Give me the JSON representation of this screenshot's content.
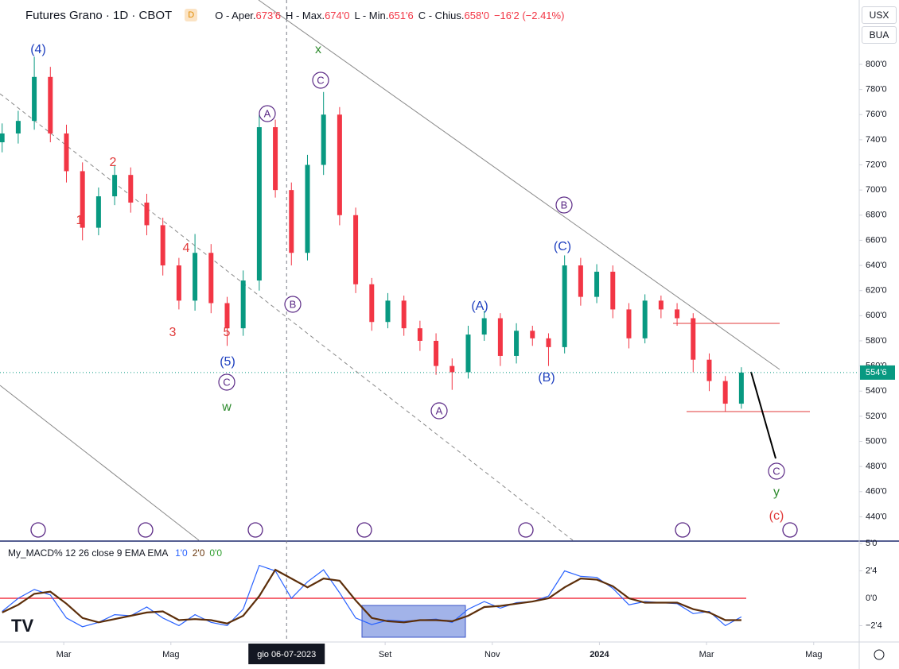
{
  "header": {
    "title": "Futures Grano · 1D · CBOT",
    "badge": "D",
    "ohlc": [
      {
        "name": "O - Aper.",
        "value": "673'6"
      },
      {
        "name": "H - Max.",
        "value": "674'0"
      },
      {
        "name": "L - Min.",
        "value": "651'6"
      },
      {
        "name": "C - Chius.",
        "value": "658'0"
      }
    ],
    "change": "−16'2 (−2.41%)",
    "currency": "USX",
    "unit": "BUA"
  },
  "chart_data": [
    {
      "type": "candlestick",
      "up_color": "#089981",
      "down_color": "#f23645",
      "x": [
        0.85,
        1.15,
        1.45,
        1.75,
        2.05,
        2.35,
        2.65,
        2.95,
        3.25,
        3.55,
        3.85,
        4.15,
        4.45,
        4.75,
        5.05,
        5.35,
        5.65,
        5.95,
        6.25,
        6.55,
        6.85,
        7.15,
        7.45,
        7.75,
        8.05,
        8.35,
        8.65,
        8.95,
        9.25,
        9.55,
        9.85,
        10.15,
        10.45,
        10.75,
        11.05,
        11.35,
        11.65,
        11.95,
        12.25,
        12.55,
        12.85,
        13.15,
        13.45,
        13.75,
        14.05,
        14.35,
        14.65
      ],
      "open": [
        738,
        745,
        755,
        790,
        745,
        715,
        670,
        695,
        712,
        690,
        672,
        640,
        612,
        650,
        610,
        590,
        628,
        750,
        700,
        650,
        720,
        760,
        680,
        625,
        595,
        612,
        590,
        580,
        560,
        555,
        585,
        598,
        568,
        588,
        582,
        575,
        640,
        615,
        635,
        605,
        582,
        612,
        605,
        598,
        565,
        548,
        530
      ],
      "high": [
        753,
        763,
        806,
        798,
        752,
        722,
        702,
        720,
        718,
        697,
        678,
        646,
        665,
        657,
        615,
        636,
        760,
        756,
        706,
        728,
        778,
        766,
        686,
        630,
        618,
        616,
        596,
        586,
        566,
        592,
        604,
        602,
        594,
        592,
        586,
        648,
        646,
        641,
        640,
        610,
        617,
        616,
        610,
        602,
        570,
        552,
        559
      ],
      "low": [
        730,
        737,
        748,
        738,
        706,
        660,
        664,
        688,
        682,
        664,
        632,
        605,
        604,
        602,
        576,
        584,
        620,
        694,
        640,
        644,
        712,
        672,
        618,
        588,
        590,
        584,
        572,
        553,
        541,
        550,
        580,
        560,
        562,
        576,
        560,
        570,
        608,
        610,
        598,
        574,
        578,
        598,
        592,
        555,
        540,
        524,
        526
      ],
      "close": [
        745,
        755,
        790,
        745,
        715,
        670,
        695,
        712,
        690,
        672,
        640,
        612,
        650,
        610,
        590,
        628,
        750,
        700,
        650,
        720,
        760,
        680,
        625,
        595,
        612,
        590,
        580,
        560,
        555,
        585,
        598,
        568,
        588,
        582,
        575,
        640,
        615,
        635,
        605,
        582,
        612,
        605,
        598,
        565,
        548,
        530,
        554.75
      ],
      "xlim": [
        0.81,
        16.85
      ],
      "xticks": [
        {
          "value": 2,
          "label": "Mar"
        },
        {
          "value": 4,
          "label": "Mag"
        },
        {
          "value": 8,
          "label": "Set"
        },
        {
          "value": 10,
          "label": "Nov"
        },
        {
          "value": 12,
          "label": "2024"
        },
        {
          "value": 14,
          "label": "Mar"
        },
        {
          "value": 16,
          "label": "Mag"
        }
      ],
      "crosshair": {
        "value": 6.16,
        "label": "gio 06-07-2023"
      },
      "ylim": [
        421.3,
        851.2
      ],
      "yticks": [
        {
          "value": 440,
          "label": "440'0"
        },
        {
          "value": 460,
          "label": "460'0"
        },
        {
          "value": 480,
          "label": "480'0"
        },
        {
          "value": 500,
          "label": "500'0"
        },
        {
          "value": 520,
          "label": "520'0"
        },
        {
          "value": 540,
          "label": "540'0"
        },
        {
          "value": 560,
          "label": "560'0"
        },
        {
          "value": 580,
          "label": "580'0"
        },
        {
          "value": 600,
          "label": "600'0"
        },
        {
          "value": 620,
          "label": "620'0"
        },
        {
          "value": 640,
          "label": "640'0"
        },
        {
          "value": 660,
          "label": "660'0"
        },
        {
          "value": 680,
          "label": "680'0"
        },
        {
          "value": 700,
          "label": "700'0"
        },
        {
          "value": 720,
          "label": "720'0"
        },
        {
          "value": 740,
          "label": "740'0"
        },
        {
          "value": 760,
          "label": "760'0"
        },
        {
          "value": 780,
          "label": "780'0"
        },
        {
          "value": 800,
          "label": "800'0"
        }
      ],
      "grid": false,
      "last_price": {
        "value": 554.75,
        "label": "554'6"
      },
      "annotations": [
        {
          "text": "(4)",
          "color": "#1e3fbf",
          "circled": false
        },
        {
          "text": "x",
          "color": "#2e8b2e",
          "circled": false
        },
        {
          "text": "C",
          "color": "#5b2a86",
          "circled": true
        },
        {
          "text": "A",
          "color": "#5b2a86",
          "circled": true
        },
        {
          "text": "2",
          "color": "#e03a3a",
          "circled": false
        },
        {
          "text": "1",
          "color": "#e03a3a",
          "circled": false
        },
        {
          "text": "4",
          "color": "#e03a3a",
          "circled": false
        },
        {
          "text": "3",
          "color": "#e03a3a",
          "circled": false
        },
        {
          "text": "5",
          "color": "#e03a3a",
          "circled": false
        },
        {
          "text": "(5)",
          "color": "#1e3fbf",
          "circled": false
        },
        {
          "text": "C",
          "color": "#5b2a86",
          "circled": true
        },
        {
          "text": "w",
          "color": "#2e8b2e",
          "circled": false
        },
        {
          "text": "B",
          "color": "#5b2a86",
          "circled": true
        },
        {
          "text": "B",
          "color": "#5b2a86",
          "circled": true
        },
        {
          "text": "(C)",
          "color": "#1e3fbf",
          "circled": false
        },
        {
          "text": "(A)",
          "color": "#1e3fbf",
          "circled": false
        },
        {
          "text": "(B)",
          "color": "#1e3fbf",
          "circled": false
        },
        {
          "text": "A",
          "color": "#5b2a86",
          "circled": true
        },
        {
          "text": "C",
          "color": "#5b2a86",
          "circled": true
        },
        {
          "text": "y",
          "color": "#2e8b2e",
          "circled": false
        },
        {
          "text": "(c)",
          "color": "#e03a3a",
          "circled": false
        }
      ]
    },
    {
      "type": "line",
      "title": "My_MACD% 12 26 close 9 EMA EMA",
      "legend_values": [
        {
          "label": "1'0",
          "color": "#2962ff"
        },
        {
          "label": "2'0",
          "color": "#6b3a10"
        },
        {
          "label": "0'0",
          "color": "#2e9e2e"
        }
      ],
      "x": [
        0.85,
        1.15,
        1.45,
        1.75,
        2.05,
        2.35,
        2.65,
        2.95,
        3.25,
        3.55,
        3.85,
        4.15,
        4.45,
        4.75,
        5.05,
        5.35,
        5.65,
        5.95,
        6.25,
        6.55,
        6.85,
        7.15,
        7.45,
        7.75,
        8.05,
        8.35,
        8.65,
        8.95,
        9.25,
        9.55,
        9.85,
        10.15,
        10.45,
        10.75,
        11.05,
        11.35,
        11.65,
        11.95,
        12.25,
        12.55,
        12.85,
        13.15,
        13.45,
        13.75,
        14.05,
        14.35,
        14.65
      ],
      "xlim": [
        0.81,
        16.85
      ],
      "series": [
        {
          "color": "#2962ff",
          "values": [
            -1.2,
            0.0,
            0.8,
            0.3,
            -1.8,
            -2.6,
            -2.2,
            -1.5,
            -1.6,
            -0.8,
            -1.8,
            -2.5,
            -1.5,
            -2.2,
            -2.5,
            -1.0,
            3.0,
            2.5,
            0.0,
            1.5,
            2.6,
            0.5,
            -1.8,
            -2.4,
            -2.0,
            -2.1,
            -2.0,
            -1.9,
            -2.2,
            -1.0,
            -0.3,
            -0.9,
            -0.4,
            -0.3,
            0.2,
            2.5,
            2.0,
            1.9,
            0.9,
            -0.6,
            -0.3,
            -0.4,
            -0.5,
            -1.4,
            -1.2,
            -2.5,
            -1.7
          ]
        },
        {
          "color": "#5c2e0a",
          "values": [
            -1.3,
            -0.6,
            0.4,
            0.6,
            -0.5,
            -1.8,
            -2.2,
            -1.9,
            -1.6,
            -1.3,
            -1.2,
            -2.0,
            -1.9,
            -2.0,
            -2.3,
            -1.6,
            0.2,
            2.6,
            1.8,
            1.0,
            1.8,
            1.6,
            -0.2,
            -1.8,
            -2.1,
            -2.2,
            -2.0,
            -2.0,
            -2.1,
            -1.6,
            -0.8,
            -0.7,
            -0.5,
            -0.3,
            0.0,
            1.0,
            1.8,
            1.7,
            1.1,
            0.0,
            -0.4,
            -0.4,
            -0.4,
            -1.0,
            -1.3,
            -2.0,
            -2.0
          ]
        }
      ],
      "ylim": [
        -3.99,
        5.07
      ],
      "yticks": [
        {
          "value": 5,
          "label": "5'0"
        },
        {
          "value": 2.5,
          "label": "2'4"
        },
        {
          "value": 0,
          "label": "0'0"
        },
        {
          "value": -2.5,
          "label": "−2'4"
        }
      ]
    }
  ]
}
